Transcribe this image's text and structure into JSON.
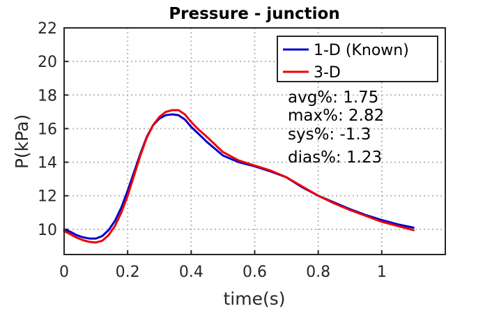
{
  "chart_data": {
    "type": "line",
    "title": "Pressure - junction",
    "xlabel": "time(s)",
    "ylabel": "P(kPa)",
    "xlim": [
      0,
      1.2
    ],
    "ylim": [
      8.5,
      22
    ],
    "xticks": [
      0,
      0.2,
      0.4,
      0.6,
      0.8,
      1
    ],
    "xtick_labels": [
      "0",
      "0.2",
      "0.4",
      "0.6",
      "0.8",
      "1"
    ],
    "yticks": [
      10,
      12,
      14,
      16,
      18,
      20,
      22
    ],
    "ytick_labels": [
      "10",
      "12",
      "14",
      "16",
      "18",
      "20",
      "22"
    ],
    "grid": true,
    "legend_position": "top-right",
    "series": [
      {
        "name": "1-D (Known)",
        "color": "#0000cc",
        "x": [
          0,
          0.02,
          0.04,
          0.06,
          0.08,
          0.1,
          0.12,
          0.14,
          0.16,
          0.18,
          0.2,
          0.22,
          0.24,
          0.26,
          0.28,
          0.3,
          0.32,
          0.34,
          0.36,
          0.38,
          0.4,
          0.42,
          0.45,
          0.5,
          0.55,
          0.6,
          0.65,
          0.7,
          0.75,
          0.8,
          0.85,
          0.9,
          0.95,
          1.0,
          1.05,
          1.1
        ],
        "y": [
          10.0,
          9.85,
          9.65,
          9.52,
          9.45,
          9.45,
          9.6,
          9.95,
          10.5,
          11.3,
          12.3,
          13.4,
          14.5,
          15.5,
          16.2,
          16.6,
          16.8,
          16.85,
          16.8,
          16.55,
          16.1,
          15.75,
          15.2,
          14.4,
          14.0,
          13.75,
          13.45,
          13.1,
          12.5,
          12.0,
          11.6,
          11.2,
          10.85,
          10.55,
          10.3,
          10.1
        ]
      },
      {
        "name": "3-D",
        "color": "#ee0000",
        "x": [
          0,
          0.02,
          0.04,
          0.06,
          0.08,
          0.1,
          0.12,
          0.14,
          0.16,
          0.18,
          0.2,
          0.22,
          0.24,
          0.26,
          0.28,
          0.3,
          0.32,
          0.34,
          0.36,
          0.38,
          0.4,
          0.42,
          0.45,
          0.5,
          0.55,
          0.6,
          0.65,
          0.7,
          0.75,
          0.8,
          0.85,
          0.9,
          0.95,
          1.0,
          1.05,
          1.1
        ],
        "y": [
          9.9,
          9.7,
          9.5,
          9.35,
          9.25,
          9.22,
          9.32,
          9.65,
          10.2,
          11.0,
          12.0,
          13.2,
          14.4,
          15.45,
          16.2,
          16.7,
          17.0,
          17.1,
          17.1,
          16.85,
          16.4,
          16.0,
          15.5,
          14.6,
          14.1,
          13.8,
          13.5,
          13.1,
          12.55,
          12.0,
          11.55,
          11.15,
          10.8,
          10.45,
          10.2,
          9.95
        ]
      }
    ],
    "annotations": [
      "avg%: 1.75",
      "max%: 2.82",
      "sys%: -1.3",
      "dias%: 1.23"
    ]
  }
}
